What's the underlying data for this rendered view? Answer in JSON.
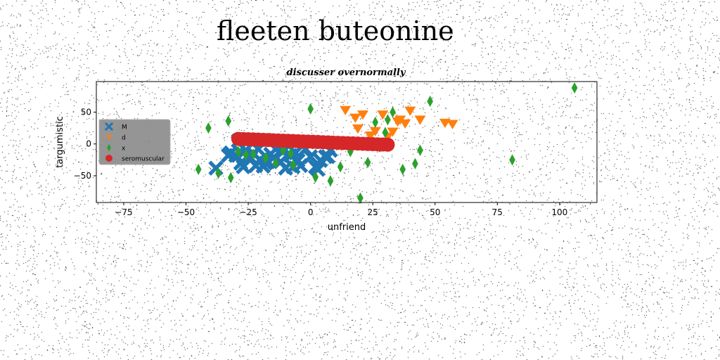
{
  "page": {
    "title": "fleeten buteonine"
  },
  "chart_data": {
    "type": "scatter",
    "title": "discusser overnormally",
    "xlabel": "unfriend",
    "ylabel": "targumistic",
    "xlim": [
      -86,
      115
    ],
    "ylim": [
      -92,
      98
    ],
    "xticks": [
      -75,
      -50,
      -25,
      0,
      25,
      50,
      75,
      100
    ],
    "xtick_labels": [
      "−75",
      "−50",
      "−25",
      "0",
      "25",
      "50",
      "75",
      "100"
    ],
    "yticks": [
      50,
      0,
      -50
    ],
    "ytick_labels": [
      "50",
      "0",
      "−50"
    ],
    "grid": false,
    "legend_position": "center-left",
    "series": [
      {
        "name": "M",
        "marker": "x",
        "color": "#1f77b4",
        "x": [
          -38,
          -32,
          -30,
          -28,
          -26,
          -24,
          -22,
          -20,
          -18,
          -16,
          -14,
          -12,
          -10,
          -8,
          -6,
          -4,
          -2,
          0,
          2,
          4,
          6,
          8,
          -29,
          -27,
          -23,
          -21,
          -19,
          -15,
          -11,
          -7,
          -5,
          3,
          7,
          -33,
          -17
        ],
        "y": [
          -38,
          -14,
          -18,
          -30,
          -10,
          -22,
          -34,
          -26,
          -30,
          -16,
          -8,
          -28,
          -38,
          -18,
          -14,
          -34,
          -8,
          -20,
          -36,
          -26,
          -20,
          -10,
          5,
          -36,
          -15,
          -8,
          -35,
          -22,
          -12,
          -36,
          -26,
          -40,
          -20,
          -18,
          -28
        ]
      },
      {
        "name": "d",
        "marker": "v",
        "color": "#ff7f0e",
        "x": [
          14,
          18,
          21,
          24,
          26,
          29,
          31,
          33,
          35,
          38,
          40,
          44,
          54,
          57,
          19,
          36
        ],
        "y": [
          53,
          41,
          46,
          13,
          20,
          46,
          11,
          19,
          35,
          32,
          52,
          38,
          33,
          31,
          24,
          38
        ]
      },
      {
        "name": "x",
        "color": "#2ca02c",
        "marker": "d",
        "x": [
          -45,
          -41,
          -37,
          -33,
          -32,
          -29,
          -26,
          -23,
          -18,
          -14,
          -11,
          -7,
          0,
          2,
          8,
          12,
          16,
          20,
          23,
          30,
          33,
          37,
          42,
          44,
          48,
          81,
          106,
          -8,
          26,
          31
        ],
        "y": [
          -40,
          25,
          -46,
          36,
          -53,
          -12,
          -17,
          -16,
          -22,
          -30,
          -10,
          -33,
          55,
          -52,
          -58,
          -36,
          -12,
          -85,
          -29,
          18,
          50,
          -40,
          -31,
          -10,
          67,
          -25,
          88,
          -15,
          34,
          38
        ]
      },
      {
        "name": "seromuscular",
        "marker": "o",
        "color": "#d62728",
        "x": [
          -29,
          -27,
          -25,
          -23,
          -21,
          -19,
          -17,
          -15,
          -13,
          -11,
          -9,
          -7,
          -5,
          -3,
          -1,
          1,
          3,
          5,
          7,
          9,
          11,
          13,
          15,
          17,
          19,
          21,
          23,
          25,
          27,
          29,
          31
        ],
        "y": [
          8,
          7.7,
          7.4,
          7.1,
          6.8,
          6.5,
          6.2,
          5.8,
          5.5,
          5.2,
          4.9,
          4.6,
          4.3,
          4,
          3.7,
          3.4,
          3.1,
          2.7,
          2.4,
          2.1,
          1.8,
          1.5,
          1.2,
          0.9,
          0.6,
          0.3,
          0,
          -0.3,
          -0.6,
          -0.9,
          -1.2
        ]
      }
    ]
  }
}
